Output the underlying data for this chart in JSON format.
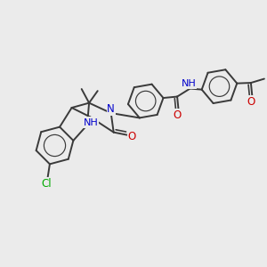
{
  "bg_color": "#ebebeb",
  "bond_color": "#3a3a3a",
  "o_color": "#cc0000",
  "n_color": "#0000cc",
  "cl_color": "#00aa00",
  "lw": 1.4,
  "figsize": [
    3.0,
    3.0
  ],
  "dpi": 100,
  "xlim": [
    0,
    10
  ],
  "ylim": [
    0,
    10
  ]
}
